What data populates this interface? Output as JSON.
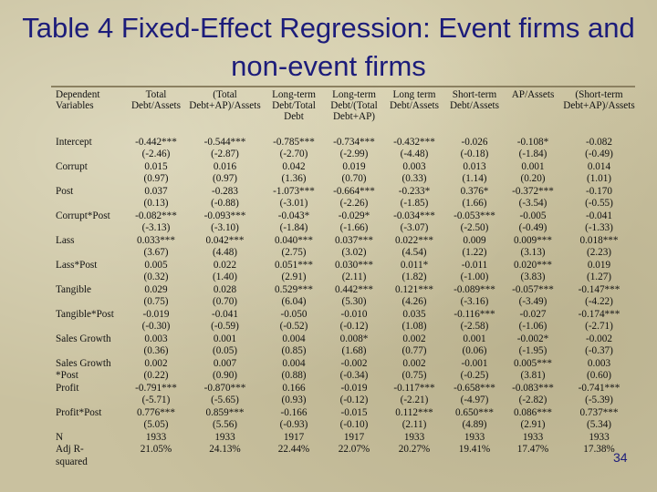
{
  "slide": {
    "title": "Table 4 Fixed-Effect Regression: Event firms and non-event firms",
    "page_number": "34"
  },
  "table": {
    "headers": [
      "Dependent\nVariables",
      "Total\nDebt/Assets",
      "(Total\nDebt+AP)/Assets",
      "Long-term\nDebt/Total\nDebt",
      "Long-term\nDebt/(Total\nDebt+AP)",
      "Long term\nDebt/Assets",
      "Short-term\nDebt/Assets",
      "AP/Assets",
      "(Short-term\nDebt+AP)/Assets"
    ],
    "rows": [
      [
        "Intercept",
        "-0.442***",
        "-0.544***",
        "-0.785***",
        "-0.734***",
        "-0.432***",
        "-0.026",
        "-0.108*",
        "-0.082"
      ],
      [
        "",
        "(-2.46)",
        "(-2.87)",
        "(-2.70)",
        "(-2.99)",
        "(-4.48)",
        "(-0.18)",
        "(-1.84)",
        "(-0.49)"
      ],
      [
        "Corrupt",
        "0.015",
        "0.016",
        "0.042",
        "0.019",
        "0.003",
        "0.013",
        "0.001",
        "0.014"
      ],
      [
        "",
        "(0.97)",
        "(0.97)",
        "(1.36)",
        "(0.70)",
        "(0.33)",
        "(1.14)",
        "(0.20)",
        "(1.01)"
      ],
      [
        "Post",
        "0.037",
        "-0.283",
        "-1.073***",
        "-0.664***",
        "-0.233*",
        "0.376*",
        "-0.372***",
        "-0.170"
      ],
      [
        "",
        "(0.13)",
        "(-0.88)",
        "(-3.01)",
        "(-2.26)",
        "(-1.85)",
        "(1.66)",
        "(-3.54)",
        "(-0.55)"
      ],
      [
        "Corrupt*Post",
        "-0.082***",
        "-0.093***",
        "-0.043*",
        "-0.029*",
        "-0.034***",
        "-0.053***",
        "-0.005",
        "-0.041"
      ],
      [
        "",
        "(-3.13)",
        "(-3.10)",
        "(-1.84)",
        "(-1.66)",
        "(-3.07)",
        "(-2.50)",
        "(-0.49)",
        "(-1.33)"
      ],
      [
        "Lass",
        "0.033***",
        "0.042***",
        "0.040***",
        "0.037***",
        "0.022***",
        "0.009",
        "0.009***",
        "0.018***"
      ],
      [
        "",
        "(3.67)",
        "(4.48)",
        "(2.75)",
        "(3.02)",
        "(4.54)",
        "(1.22)",
        "(3.13)",
        "(2.23)"
      ],
      [
        "Lass*Post",
        "0.005",
        "0.022",
        "0.051***",
        "0.030***",
        "0.011*",
        "-0.011",
        "0.020***",
        "0.019"
      ],
      [
        "",
        "(0.32)",
        "(1.40)",
        "(2.91)",
        "(2.11)",
        "(1.82)",
        "(-1.00)",
        "(3.83)",
        "(1.27)"
      ],
      [
        "Tangible",
        "0.029",
        "0.028",
        "0.529***",
        "0.442***",
        "0.121***",
        "-0.089***",
        "-0.057***",
        "-0.147***"
      ],
      [
        "",
        "(0.75)",
        "(0.70)",
        "(6.04)",
        "(5.30)",
        "(4.26)",
        "(-3.16)",
        "(-3.49)",
        "(-4.22)"
      ],
      [
        "Tangible*Post",
        "-0.019",
        "-0.041",
        "-0.050",
        "-0.010",
        "0.035",
        "-0.116***",
        "-0.027",
        "-0.174***"
      ],
      [
        "",
        "(-0.30)",
        "(-0.59)",
        "(-0.52)",
        "(-0.12)",
        "(1.08)",
        "(-2.58)",
        "(-1.06)",
        "(-2.71)"
      ],
      [
        "Sales Growth",
        "0.003",
        "0.001",
        "0.004",
        "0.008*",
        "0.002",
        "0.001",
        "-0.002*",
        "-0.002"
      ],
      [
        "",
        "(0.36)",
        "(0.05)",
        "(0.85)",
        "(1.68)",
        "(0.77)",
        "(0.06)",
        "(-1.95)",
        "(-0.37)"
      ],
      [
        "Sales Growth",
        "0.002",
        "0.007",
        "0.004",
        "-0.002",
        "0.002",
        "-0.001",
        "0.005***",
        "0.003"
      ],
      [
        "*Post",
        "(0.22)",
        "(0.90)",
        "(0.88)",
        "(-0.34)",
        "(0.75)",
        "(-0.25)",
        "(3.81)",
        "(0.60)"
      ],
      [
        "Profit",
        "-0.791***",
        "-0.870***",
        "0.166",
        "-0.019",
        "-0.117***",
        "-0.658***",
        "-0.083***",
        "-0.741***"
      ],
      [
        "",
        "(-5.71)",
        "(-5.65)",
        "(0.93)",
        "(-0.12)",
        "(-2.21)",
        "(-4.97)",
        "(-2.82)",
        "(-5.39)"
      ],
      [
        "Profit*Post",
        "0.776***",
        "0.859***",
        "-0.166",
        "-0.015",
        "0.112***",
        "0.650***",
        "0.086***",
        "0.737***"
      ],
      [
        "",
        "(5.05)",
        "(5.56)",
        "(-0.93)",
        "(-0.10)",
        "(2.11)",
        "(4.89)",
        "(2.91)",
        "(5.34)"
      ],
      [
        "N",
        "1933",
        "1933",
        "1917",
        "1917",
        "1933",
        "1933",
        "1933",
        "1933"
      ],
      [
        "Adj R-",
        "21.05%",
        "24.13%",
        "22.44%",
        "22.07%",
        "20.27%",
        "19.41%",
        "17.47%",
        "17.38%"
      ],
      [
        "squared",
        "",
        "",
        "",
        "",
        "",
        "",
        "",
        ""
      ]
    ]
  }
}
